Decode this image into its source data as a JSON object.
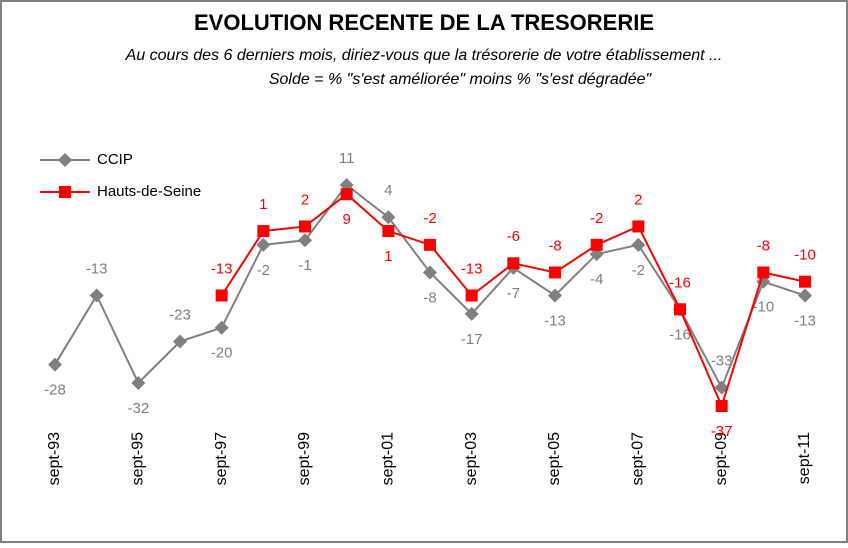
{
  "chart_data": {
    "type": "line",
    "title": "EVOLUTION RECENTE DE LA TRESORERIE",
    "subtitle": [
      "Au cours des 6 derniers mois, diriez-vous que la trésorerie de votre établissement ...",
      "Solde = % \"s'est améliorée\"  moins %  \"s'est dégradée\""
    ],
    "categories": [
      "sept-93",
      null,
      "sept-95",
      null,
      "sept-97",
      null,
      "sept-99",
      null,
      "sept-01",
      null,
      "sept-03",
      null,
      "sept-05",
      null,
      "sept-07",
      null,
      "sept-09",
      null,
      "sept-11"
    ],
    "series": [
      {
        "name": "CCIP",
        "color": "#808080",
        "marker": "diamond",
        "values": [
          -28,
          -13,
          -32,
          -23,
          -20,
          -2,
          -1,
          11,
          4,
          -8,
          -17,
          -7,
          -13,
          -4,
          -2,
          -16,
          -33,
          -10,
          -13
        ]
      },
      {
        "name": "Hauts-de-Seine",
        "color": "#ff0000",
        "marker": "square",
        "values": [
          null,
          null,
          null,
          null,
          -13,
          1,
          2,
          9,
          1,
          -2,
          -13,
          -6,
          -8,
          -2,
          2,
          -16,
          -37,
          -8,
          -10
        ]
      }
    ],
    "legend": "upper left"
  }
}
